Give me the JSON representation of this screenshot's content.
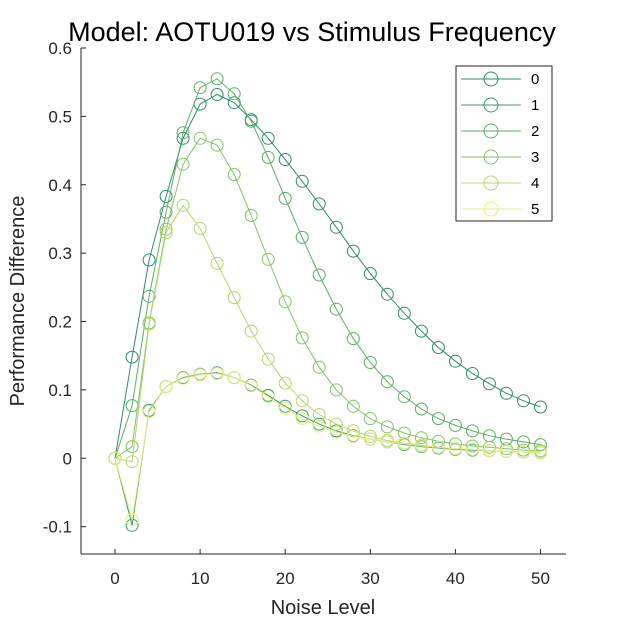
{
  "chart_data": {
    "type": "line",
    "title": "Model: AOTU019 vs Stimulus Frequency",
    "xlabel": "Noise Level",
    "ylabel": "Performance Difference",
    "xlim": [
      -4,
      53
    ],
    "ylim": [
      -0.14,
      0.6
    ],
    "xticks": [
      0,
      10,
      20,
      30,
      40,
      50
    ],
    "xtick_labels": [
      "0",
      "10",
      "20",
      "30",
      "40",
      "50"
    ],
    "yticks": [
      -0.1,
      0,
      0.1,
      0.2,
      0.3,
      0.4,
      0.5,
      0.6
    ],
    "ytick_labels": [
      "-0.1",
      "0",
      "0.1",
      "0.2",
      "0.3",
      "0.4",
      "0.5",
      "0.6"
    ],
    "grid": false,
    "legend_position": "top-right",
    "marker": "circle-open",
    "x": [
      0,
      2,
      4,
      6,
      8,
      10,
      12,
      14,
      16,
      18,
      20,
      22,
      24,
      26,
      28,
      30,
      32,
      34,
      36,
      38,
      40,
      42,
      44,
      46,
      48,
      50
    ],
    "series": [
      {
        "name": "0",
        "color": "#2e8b6f",
        "values": [
          0,
          0.148,
          0.29,
          0.383,
          0.468,
          0.518,
          0.532,
          0.52,
          0.495,
          0.468,
          0.437,
          0.405,
          0.372,
          0.338,
          0.303,
          0.27,
          0.24,
          0.212,
          0.186,
          0.162,
          0.142,
          0.124,
          0.109,
          0.095,
          0.084,
          0.075
        ]
      },
      {
        "name": "1",
        "color": "#3c9a6a",
        "values": [
          0,
          -0.098,
          0.07,
          0.105,
          0.118,
          0.123,
          0.125,
          0.118,
          0.107,
          0.092,
          0.076,
          0.062,
          0.05,
          0.04,
          0.033,
          0.028,
          0.024,
          0.02,
          0.017,
          0.015,
          0.013,
          0.012,
          0.011,
          0.01,
          0.009,
          0.008
        ]
      },
      {
        "name": "2",
        "color": "#5aad63",
        "values": [
          0,
          0.077,
          0.237,
          0.36,
          0.476,
          0.542,
          0.555,
          0.533,
          0.493,
          0.44,
          0.38,
          0.323,
          0.268,
          0.218,
          0.175,
          0.14,
          0.112,
          0.09,
          0.072,
          0.058,
          0.048,
          0.04,
          0.033,
          0.028,
          0.024,
          0.02
        ]
      },
      {
        "name": "3",
        "color": "#84c266",
        "values": [
          0,
          0.017,
          0.198,
          0.335,
          0.43,
          0.468,
          0.458,
          0.415,
          0.355,
          0.291,
          0.229,
          0.176,
          0.133,
          0.1,
          0.076,
          0.058,
          0.046,
          0.037,
          0.03,
          0.025,
          0.021,
          0.018,
          0.016,
          0.014,
          0.012,
          0.011
        ]
      },
      {
        "name": "4",
        "color": "#b2d86b",
        "values": [
          0,
          -0.005,
          0.196,
          0.33,
          0.37,
          0.336,
          0.285,
          0.235,
          0.186,
          0.145,
          0.11,
          0.084,
          0.064,
          0.05,
          0.04,
          0.032,
          0.026,
          0.022,
          0.019,
          0.016,
          0.014,
          0.013,
          0.011,
          0.01,
          0.009,
          0.009
        ]
      },
      {
        "name": "5",
        "color": "#e6ee7a",
        "values": [
          0,
          -0.09,
          0.068,
          0.105,
          0.117,
          0.122,
          0.124,
          0.118,
          0.106,
          0.09,
          0.073,
          0.058,
          0.047,
          0.038,
          0.032,
          0.028,
          0.024,
          0.021,
          0.018,
          0.016,
          0.014,
          0.013,
          0.011,
          0.01,
          0.009,
          0.008
        ]
      }
    ]
  }
}
